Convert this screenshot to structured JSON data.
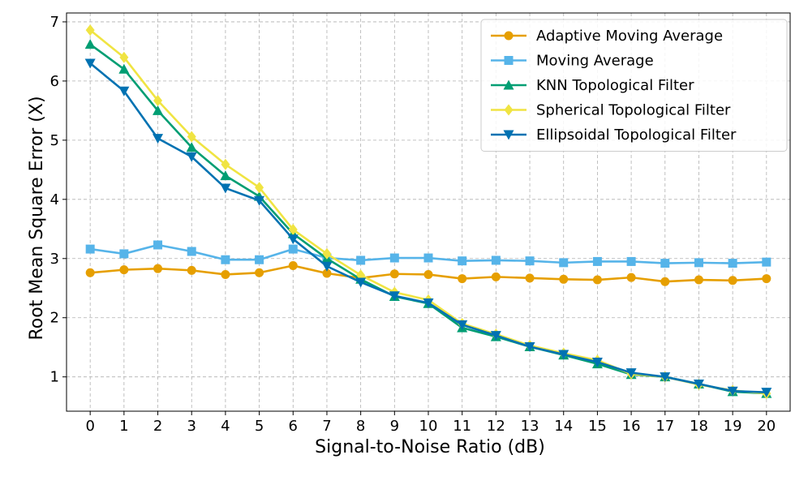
{
  "chart_data": {
    "type": "line",
    "title": "",
    "xlabel": "Signal-to-Noise Ratio (dB)",
    "ylabel": "Root Mean Square Error (X)",
    "x": [
      0,
      1,
      2,
      3,
      4,
      5,
      6,
      7,
      8,
      9,
      10,
      11,
      12,
      13,
      14,
      15,
      16,
      17,
      18,
      19,
      20
    ],
    "xlim": [
      -0.7,
      20.7
    ],
    "ylim": [
      0.42,
      7.15
    ],
    "yticks": [
      1,
      2,
      3,
      4,
      5,
      6,
      7
    ],
    "grid": true,
    "legend_position": "top-right",
    "series": [
      {
        "name": "Adaptive Moving Average",
        "color": "#E69F00",
        "marker": "circle",
        "values": [
          2.76,
          2.81,
          2.83,
          2.8,
          2.73,
          2.76,
          2.88,
          2.75,
          2.67,
          2.74,
          2.73,
          2.66,
          2.69,
          2.67,
          2.65,
          2.64,
          2.68,
          2.61,
          2.64,
          2.63,
          2.66
        ]
      },
      {
        "name": "Moving Average",
        "color": "#56B4E9",
        "marker": "square",
        "values": [
          3.16,
          3.08,
          3.23,
          3.12,
          2.98,
          2.98,
          3.16,
          3.01,
          2.97,
          3.01,
          3.01,
          2.96,
          2.97,
          2.96,
          2.93,
          2.95,
          2.95,
          2.92,
          2.93,
          2.92,
          2.94
        ]
      },
      {
        "name": "KNN Topological Filter",
        "color": "#009E73",
        "marker": "triangle-up",
        "values": [
          6.62,
          6.2,
          5.5,
          4.88,
          4.4,
          4.05,
          3.42,
          3.0,
          2.65,
          2.36,
          2.24,
          1.83,
          1.68,
          1.51,
          1.37,
          1.22,
          1.04,
          1.0,
          0.88,
          0.75,
          0.72
        ]
      },
      {
        "name": "Spherical Topological Filter",
        "color": "#F0E442",
        "marker": "diamond",
        "values": [
          6.86,
          6.4,
          5.67,
          5.06,
          4.59,
          4.2,
          3.49,
          3.08,
          2.72,
          2.43,
          2.3,
          1.9,
          1.72,
          1.53,
          1.4,
          1.28,
          1.05,
          1.0,
          0.87,
          0.77,
          0.72
        ]
      },
      {
        "name": "Ellipsoidal Topological Filter",
        "color": "#0072B2",
        "marker": "triangle-down",
        "values": [
          6.3,
          5.83,
          5.03,
          4.72,
          4.19,
          3.98,
          3.33,
          2.87,
          2.6,
          2.37,
          2.25,
          1.88,
          1.7,
          1.51,
          1.38,
          1.25,
          1.07,
          1.0,
          0.88,
          0.76,
          0.74
        ]
      }
    ]
  }
}
